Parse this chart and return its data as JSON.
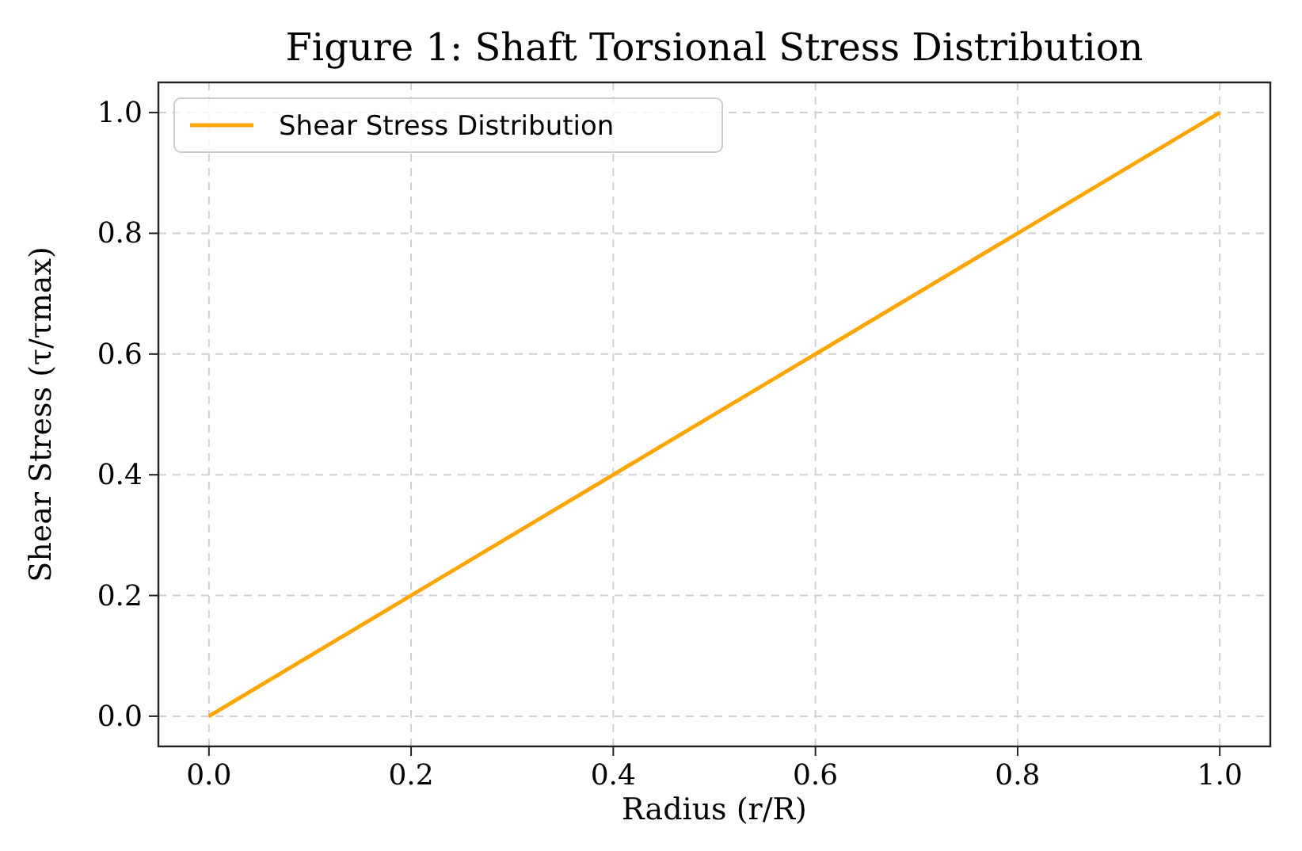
{
  "chart_data": {
    "type": "line",
    "title": "Figure 1: Shaft Torsional Stress Distribution",
    "xlabel": "Radius (r/R)",
    "ylabel": "Shear Stress (τ/τmax)",
    "x": [
      0,
      0.2,
      0.4,
      0.6,
      0.8,
      1.0
    ],
    "series": [
      {
        "name": "Shear Stress Distribution",
        "color": "#ffa500",
        "values": [
          0,
          0.2,
          0.4,
          0.6,
          0.8,
          1.0
        ]
      }
    ],
    "xlim": [
      -0.05,
      1.05
    ],
    "ylim": [
      -0.05,
      1.05
    ],
    "xticks": [
      {
        "value": 0,
        "label": "0.0"
      },
      {
        "value": 0.2,
        "label": "0.2"
      },
      {
        "value": 0.4,
        "label": "0.4"
      },
      {
        "value": 0.6,
        "label": "0.6"
      },
      {
        "value": 0.8,
        "label": "0.8"
      },
      {
        "value": 1,
        "label": "1.0"
      }
    ],
    "yticks": [
      {
        "value": 0,
        "label": "0.0"
      },
      {
        "value": 0.2,
        "label": "0.2"
      },
      {
        "value": 0.4,
        "label": "0.4"
      },
      {
        "value": 0.6,
        "label": "0.6"
      },
      {
        "value": 0.8,
        "label": "0.8"
      },
      {
        "value": 1,
        "label": "1.0"
      }
    ],
    "grid": true,
    "legend": "top left",
    "line_style": "solid",
    "marker": "none"
  }
}
